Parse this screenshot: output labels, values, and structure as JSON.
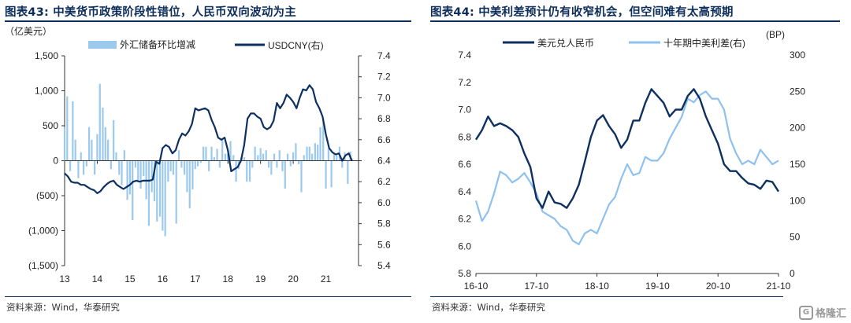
{
  "chart_data": [
    {
      "type": "bar+line",
      "title": "图表43:  中美货币政策阶段性错位，人民币双向波动为主",
      "source": "资料来源：Wind，华泰研究",
      "y_left_unit": "（亿美元）",
      "y_left_ticks": [
        "1,500",
        "1,000",
        "500",
        "0",
        "(500)",
        "(1,000)",
        "(1,500)"
      ],
      "y_left_values": [
        1500,
        1000,
        500,
        0,
        -500,
        -1000,
        -1500
      ],
      "y_right_ticks": [
        "7.4",
        "7.2",
        "7.0",
        "6.8",
        "6.6",
        "6.4",
        "6.2",
        "6.0",
        "5.8",
        "5.6",
        "5.4"
      ],
      "y_right_values": [
        7.4,
        7.2,
        7.0,
        6.8,
        6.6,
        6.4,
        6.2,
        6.0,
        5.8,
        5.6,
        5.4
      ],
      "x_ticks": [
        "13",
        "14",
        "15",
        "16",
        "17",
        "18",
        "19",
        "20",
        "21"
      ],
      "ylim_left": [
        -1500,
        1500
      ],
      "ylim_right": [
        5.4,
        7.4
      ],
      "series": [
        {
          "name": "外汇储备环比增减",
          "axis": "left",
          "type": "bar",
          "color": "#9cc9ee",
          "x": [
            2013.0,
            2013.08,
            2013.17,
            2013.25,
            2013.33,
            2013.42,
            2013.5,
            2013.58,
            2013.67,
            2013.75,
            2013.83,
            2013.92,
            2014.0,
            2014.08,
            2014.17,
            2014.25,
            2014.33,
            2014.42,
            2014.5,
            2014.58,
            2014.67,
            2014.75,
            2014.83,
            2014.92,
            2015.0,
            2015.08,
            2015.17,
            2015.25,
            2015.33,
            2015.42,
            2015.5,
            2015.58,
            2015.67,
            2015.75,
            2015.83,
            2015.92,
            2016.0,
            2016.08,
            2016.17,
            2016.25,
            2016.33,
            2016.42,
            2016.5,
            2016.58,
            2016.67,
            2016.75,
            2016.83,
            2016.92,
            2017.0,
            2017.08,
            2017.17,
            2017.25,
            2017.33,
            2017.42,
            2017.5,
            2017.58,
            2017.67,
            2017.75,
            2017.83,
            2017.92,
            2018.0,
            2018.08,
            2018.17,
            2018.25,
            2018.33,
            2018.42,
            2018.5,
            2018.58,
            2018.67,
            2018.75,
            2018.83,
            2018.92,
            2019.0,
            2019.08,
            2019.17,
            2019.25,
            2019.33,
            2019.42,
            2019.5,
            2019.58,
            2019.67,
            2019.75,
            2019.83,
            2019.92,
            2020.0,
            2020.08,
            2020.17,
            2020.25,
            2020.33,
            2020.42,
            2020.5,
            2020.58,
            2020.67,
            2020.75,
            2020.83,
            2020.92,
            2021.0,
            2021.08,
            2021.17,
            2021.25,
            2021.33,
            2021.42,
            2021.5,
            2021.58,
            2021.67,
            2021.75
          ],
          "values": [
            480,
            920,
            -150,
            850,
            300,
            -250,
            120,
            -200,
            -80,
            480,
            300,
            -200,
            380,
            1100,
            760,
            480,
            300,
            -120,
            580,
            120,
            -200,
            -350,
            150,
            -560,
            -480,
            -850,
            -100,
            -300,
            -400,
            -220,
            -550,
            -930,
            -450,
            -580,
            -870,
            -800,
            -1000,
            -1080,
            -300,
            -150,
            -200,
            -900,
            150,
            -100,
            -200,
            -450,
            -680,
            -410,
            -120,
            -80,
            -30,
            200,
            200,
            -150,
            200,
            50,
            170,
            -100,
            300,
            100,
            100,
            280,
            80,
            -300,
            -120,
            50,
            50,
            -300,
            -300,
            -100,
            200,
            80,
            180,
            100,
            150,
            -100,
            -200,
            100,
            -100,
            150,
            -150,
            -400,
            100,
            -80,
            120,
            250,
            -50,
            -450,
            80,
            200,
            200,
            100,
            250,
            230,
            480,
            600,
            -400,
            170,
            -380,
            100,
            80,
            200,
            -100,
            120,
            -330,
            130
          ]
        },
        {
          "name": "USDCNY(右)",
          "axis": "right",
          "type": "line",
          "color": "#0d3060",
          "x": [
            2013.0,
            2013.1,
            2013.2,
            2013.3,
            2013.4,
            2013.5,
            2013.6,
            2013.7,
            2013.8,
            2013.9,
            2014.0,
            2014.1,
            2014.2,
            2014.3,
            2014.4,
            2014.5,
            2014.6,
            2014.7,
            2014.8,
            2014.9,
            2015.0,
            2015.1,
            2015.2,
            2015.3,
            2015.4,
            2015.5,
            2015.6,
            2015.7,
            2015.8,
            2015.9,
            2016.0,
            2016.1,
            2016.2,
            2016.3,
            2016.4,
            2016.5,
            2016.6,
            2016.7,
            2016.8,
            2016.9,
            2017.0,
            2017.1,
            2017.2,
            2017.3,
            2017.4,
            2017.5,
            2017.6,
            2017.7,
            2017.8,
            2017.9,
            2018.0,
            2018.1,
            2018.2,
            2018.3,
            2018.4,
            2018.5,
            2018.6,
            2018.7,
            2018.8,
            2018.9,
            2019.0,
            2019.1,
            2019.2,
            2019.3,
            2019.4,
            2019.5,
            2019.6,
            2019.7,
            2019.8,
            2019.9,
            2020.0,
            2020.1,
            2020.2,
            2020.3,
            2020.4,
            2020.5,
            2020.6,
            2020.7,
            2020.8,
            2020.9,
            2021.0,
            2021.1,
            2021.2,
            2021.3,
            2021.4,
            2021.5,
            2021.6,
            2021.7,
            2021.8
          ],
          "values": [
            6.28,
            6.25,
            6.2,
            6.19,
            6.19,
            6.17,
            6.17,
            6.15,
            6.13,
            6.12,
            6.09,
            6.11,
            6.15,
            6.18,
            6.2,
            6.21,
            6.17,
            6.15,
            6.13,
            6.15,
            6.17,
            6.2,
            6.21,
            6.2,
            6.21,
            6.21,
            6.21,
            6.22,
            6.39,
            6.37,
            6.52,
            6.55,
            6.53,
            6.47,
            6.5,
            6.6,
            6.66,
            6.64,
            6.68,
            6.75,
            6.9,
            6.88,
            6.89,
            6.9,
            6.88,
            6.79,
            6.72,
            6.62,
            6.6,
            6.62,
            6.5,
            6.3,
            6.32,
            6.34,
            6.4,
            6.55,
            6.8,
            6.85,
            6.85,
            6.82,
            6.8,
            6.72,
            6.7,
            6.72,
            6.78,
            6.95,
            6.9,
            6.95,
            7.03,
            7.0,
            6.96,
            6.9,
            7.0,
            7.08,
            7.07,
            7.12,
            7.08,
            6.96,
            6.9,
            6.82,
            6.65,
            6.52,
            6.48,
            6.46,
            6.47,
            6.4,
            6.45,
            6.47,
            6.4
          ]
        }
      ]
    },
    {
      "type": "line",
      "title": "图表44:  中美利差预计仍有收窄机会，但空间难有太高预期",
      "source": "资料来源：Wind，华泰研究",
      "y_right_unit": "(BP)",
      "y_left_ticks": [
        "7.4",
        "7.2",
        "7.0",
        "6.8",
        "6.6",
        "6.4",
        "6.2",
        "6.0",
        "5.8"
      ],
      "y_left_values": [
        7.4,
        7.2,
        7.0,
        6.8,
        6.6,
        6.4,
        6.2,
        6.0,
        5.8
      ],
      "y_right_ticks": [
        "300",
        "250",
        "200",
        "150",
        "100",
        "50",
        "0"
      ],
      "y_right_values": [
        300,
        250,
        200,
        150,
        100,
        50,
        0
      ],
      "x_ticks": [
        "16-10",
        "17-10",
        "18-10",
        "19-10",
        "20-10",
        "21-10"
      ],
      "ylim_left": [
        5.8,
        7.4
      ],
      "ylim_right": [
        0,
        300
      ],
      "series": [
        {
          "name": "美元兑人民币",
          "axis": "left",
          "type": "line",
          "color": "#0d3060",
          "x": [
            2016.75,
            2016.85,
            2016.95,
            2017.05,
            2017.15,
            2017.25,
            2017.35,
            2017.45,
            2017.55,
            2017.65,
            2017.75,
            2017.85,
            2017.95,
            2018.05,
            2018.15,
            2018.25,
            2018.35,
            2018.45,
            2018.55,
            2018.65,
            2018.75,
            2018.85,
            2018.95,
            2019.05,
            2019.15,
            2019.25,
            2019.35,
            2019.45,
            2019.55,
            2019.65,
            2019.75,
            2019.85,
            2019.95,
            2020.05,
            2020.15,
            2020.25,
            2020.35,
            2020.45,
            2020.55,
            2020.65,
            2020.75,
            2020.85,
            2020.95,
            2021.05,
            2021.15,
            2021.25,
            2021.35,
            2021.45,
            2021.55,
            2021.65,
            2021.75
          ],
          "values": [
            6.78,
            6.85,
            6.95,
            6.88,
            6.9,
            6.88,
            6.85,
            6.8,
            6.68,
            6.58,
            6.35,
            6.28,
            6.4,
            6.32,
            6.31,
            6.28,
            6.35,
            6.45,
            6.62,
            6.8,
            6.92,
            6.96,
            6.88,
            6.82,
            6.72,
            6.78,
            6.92,
            6.92,
            7.05,
            7.15,
            7.1,
            7.05,
            6.95,
            7.0,
            7.0,
            7.1,
            7.15,
            7.08,
            6.95,
            6.85,
            6.75,
            6.6,
            6.55,
            6.55,
            6.5,
            6.46,
            6.45,
            6.42,
            6.48,
            6.47,
            6.4
          ]
        },
        {
          "name": "十年期中美利差(右)",
          "axis": "right",
          "type": "line",
          "color": "#8ec1ee",
          "x": [
            2016.75,
            2016.85,
            2016.95,
            2017.05,
            2017.15,
            2017.25,
            2017.35,
            2017.45,
            2017.55,
            2017.65,
            2017.75,
            2017.85,
            2017.95,
            2018.05,
            2018.15,
            2018.25,
            2018.35,
            2018.45,
            2018.55,
            2018.65,
            2018.75,
            2018.85,
            2018.95,
            2019.05,
            2019.15,
            2019.25,
            2019.35,
            2019.45,
            2019.55,
            2019.65,
            2019.75,
            2019.85,
            2019.95,
            2020.05,
            2020.15,
            2020.25,
            2020.35,
            2020.45,
            2020.55,
            2020.65,
            2020.75,
            2020.85,
            2020.95,
            2021.05,
            2021.15,
            2021.25,
            2021.35,
            2021.45,
            2021.55,
            2021.65,
            2021.75
          ],
          "values": [
            100,
            72,
            85,
            110,
            140,
            135,
            125,
            130,
            138,
            125,
            110,
            85,
            80,
            75,
            65,
            60,
            45,
            40,
            55,
            60,
            55,
            75,
            95,
            105,
            130,
            150,
            135,
            138,
            160,
            155,
            155,
            165,
            185,
            200,
            215,
            240,
            235,
            245,
            250,
            240,
            240,
            225,
            185,
            165,
            150,
            155,
            150,
            170,
            160,
            150,
            155
          ]
        }
      ]
    }
  ],
  "watermark": "格隆汇"
}
